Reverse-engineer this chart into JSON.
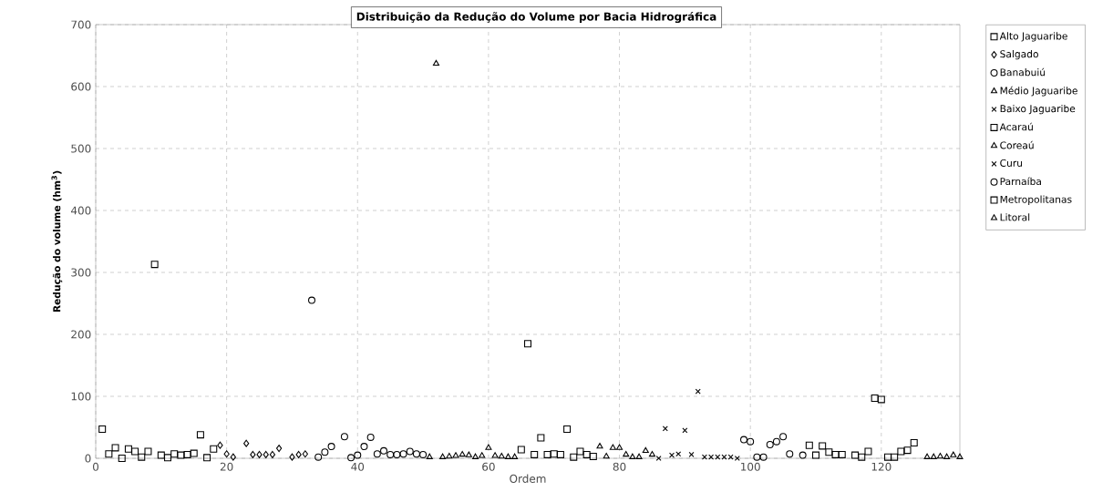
{
  "chart_data": {
    "type": "scatter",
    "title": "Distribuição da Redução do Volume por Bacia Hidrográfica",
    "xlabel": "Ordem",
    "ylabel": "Redução do volume (hm$^{3}$)",
    "xlim": [
      0,
      132
    ],
    "xticks": [
      0,
      20,
      40,
      60,
      80,
      100,
      120
    ],
    "ylim": [
      0,
      700
    ],
    "yticks": [
      0,
      100,
      200,
      300,
      400,
      500,
      600,
      700
    ],
    "grid": true,
    "legend": "right",
    "series": [
      {
        "name": "Alto Jaguaribe",
        "color": "#000000",
        "marker": "square",
        "x": [
          1,
          2,
          3,
          4,
          5,
          6,
          7,
          8,
          9,
          10,
          11,
          12,
          13,
          14,
          15,
          16,
          17,
          18
        ],
        "values": [
          47,
          7,
          17,
          0,
          15,
          11,
          2,
          11,
          313,
          5,
          1,
          7,
          5,
          6,
          8,
          38,
          1,
          15
        ]
      },
      {
        "name": "Salgado",
        "color": "#000000",
        "marker": "diamond",
        "x": [
          19,
          20,
          21,
          23,
          24,
          25,
          26,
          27,
          28,
          30,
          31,
          32
        ],
        "values": [
          21,
          7,
          2,
          24,
          6,
          6,
          6,
          6,
          16,
          2,
          6,
          7
        ]
      },
      {
        "name": "Banabuiú",
        "color": "#000000",
        "marker": "circle",
        "x": [
          33,
          34,
          35,
          36,
          38,
          39,
          40,
          41,
          42,
          43,
          44,
          45,
          46,
          47,
          48,
          49,
          50
        ],
        "values": [
          255,
          2,
          10,
          19,
          35,
          1,
          5,
          19,
          34,
          7,
          12,
          6,
          6,
          7,
          11,
          7,
          6
        ]
      },
      {
        "name": "Médio Jaguaribe",
        "color": "#000000",
        "marker": "triangle",
        "x": [
          51,
          52,
          53,
          54,
          55,
          56,
          57,
          58,
          59,
          60,
          61,
          62,
          63,
          64
        ],
        "values": [
          2,
          637,
          2,
          3,
          4,
          6,
          5,
          2,
          4,
          17,
          4,
          3,
          2,
          2
        ]
      },
      {
        "name": "Baixo Jaguaribe",
        "color": "#000000",
        "marker": "cross",
        "x": [
          86,
          88,
          89
        ],
        "values": [
          0,
          5,
          7
        ]
      },
      {
        "name": "Acaraú",
        "color": "#000000",
        "marker": "square",
        "x": [
          65,
          66,
          67,
          68,
          69,
          70,
          71,
          72,
          73,
          74,
          75,
          76
        ],
        "values": [
          14,
          185,
          6,
          33,
          6,
          7,
          6,
          47,
          2,
          11,
          6,
          3
        ]
      },
      {
        "name": "Coreaú",
        "color": "#000000",
        "marker": "triangle",
        "x": [
          77,
          78,
          79,
          80,
          81,
          82,
          83,
          84,
          85
        ],
        "values": [
          19,
          3,
          17,
          17,
          6,
          2,
          2,
          12,
          6
        ]
      },
      {
        "name": "Curu",
        "color": "#000000",
        "marker": "cross",
        "x": [
          87,
          90,
          91,
          92,
          93,
          94,
          95,
          96,
          97,
          98
        ],
        "values": [
          48,
          45,
          6,
          108,
          2,
          2,
          2,
          2,
          2,
          0
        ]
      },
      {
        "name": "Parnaíba",
        "color": "#000000",
        "marker": "circle",
        "x": [
          99,
          100,
          101,
          102,
          103,
          104,
          105,
          106,
          108
        ],
        "values": [
          30,
          27,
          2,
          2,
          22,
          27,
          35,
          7,
          5
        ]
      },
      {
        "name": "Metropolitanas",
        "color": "#000000",
        "marker": "square",
        "x": [
          109,
          110,
          111,
          112,
          113,
          114,
          116,
          117,
          118,
          119,
          120,
          121,
          122,
          123,
          124,
          125
        ],
        "values": [
          21,
          5,
          20,
          10,
          6,
          6,
          5,
          2,
          11,
          97,
          95,
          2,
          2,
          11,
          13,
          25
        ]
      },
      {
        "name": "Litoral",
        "color": "#000000",
        "marker": "triangle",
        "x": [
          127,
          128,
          129,
          130,
          131,
          132
        ],
        "values": [
          2,
          2,
          3,
          2,
          5,
          2
        ]
      }
    ]
  }
}
